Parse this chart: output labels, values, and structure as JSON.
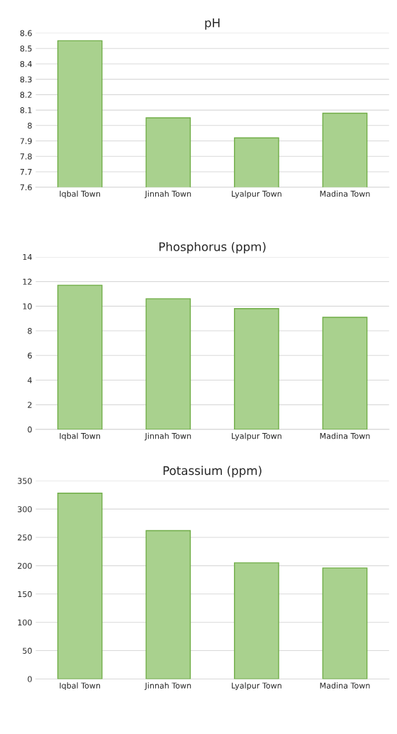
{
  "chart_data": [
    {
      "type": "bar",
      "title": "pH",
      "categories": [
        "Iqbal Town",
        "Jinnah Town",
        "Lyalpur Town",
        "Madina Town"
      ],
      "values": [
        8.55,
        8.05,
        7.92,
        8.08
      ],
      "color": "#a9d18e",
      "ylim": [
        7.6,
        8.6
      ],
      "yticks": [
        7.6,
        7.7,
        7.8,
        7.9,
        8,
        8.1,
        8.2,
        8.3,
        8.4,
        8.5,
        8.6
      ],
      "grid": "y"
    },
    {
      "type": "bar",
      "title": "Phosphorus (ppm)",
      "categories": [
        "Iqbal Town",
        "Jinnah Town",
        "Lyalpur Town",
        "Madina Town"
      ],
      "values": [
        11.7,
        10.6,
        9.8,
        9.1
      ],
      "color": "#a9d18e",
      "ylim": [
        0,
        14
      ],
      "yticks": [
        0,
        2,
        4,
        6,
        8,
        10,
        12,
        14
      ],
      "grid": "y"
    },
    {
      "type": "bar",
      "title": "Potassium (ppm)",
      "categories": [
        "Iqbal Town",
        "Jinnah Town",
        "Lyalpur Town",
        "Madina Town"
      ],
      "values": [
        328,
        262,
        205,
        196
      ],
      "color": "#a9d18e",
      "ylim": [
        0,
        350
      ],
      "yticks": [
        0,
        50,
        100,
        150,
        200,
        250,
        300,
        350
      ],
      "grid": "y"
    }
  ]
}
